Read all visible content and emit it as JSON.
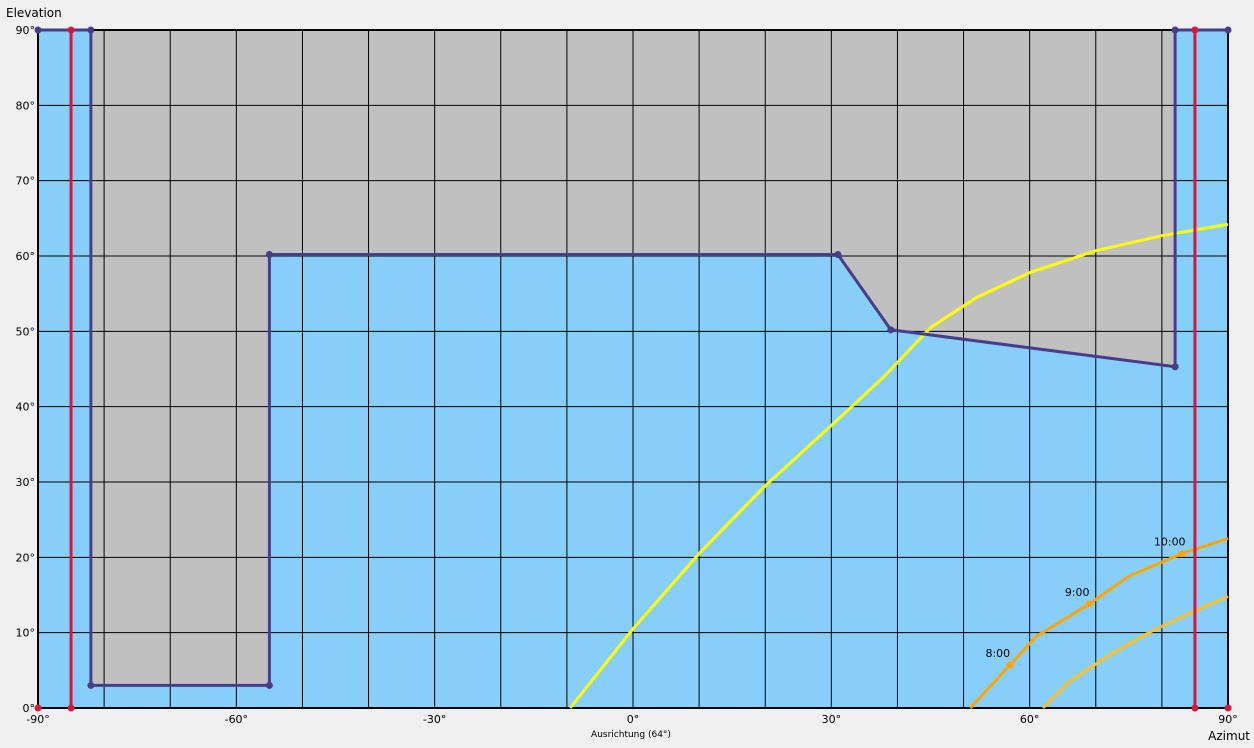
{
  "chart_data": {
    "type": "line",
    "xlabel": "Azimut",
    "ylabel": "Elevation",
    "orientation_label": "Ausrichtung (64°)",
    "xlim": [
      -90,
      90
    ],
    "ylim": [
      0,
      90
    ],
    "grid": true,
    "x_major_ticks": [
      {
        "value": -90,
        "label": "-90°"
      },
      {
        "value": -60,
        "label": "-60°"
      },
      {
        "value": -30,
        "label": "-30°"
      },
      {
        "value": 0,
        "label": "0°"
      },
      {
        "value": 30,
        "label": "30°"
      },
      {
        "value": 60,
        "label": "60°"
      },
      {
        "value": 90,
        "label": "90°"
      }
    ],
    "y_ticks": [
      {
        "value": 0,
        "label": "0°"
      },
      {
        "value": 10,
        "label": "10°"
      },
      {
        "value": 20,
        "label": "20°"
      },
      {
        "value": 30,
        "label": "30°"
      },
      {
        "value": 40,
        "label": "40°"
      },
      {
        "value": 50,
        "label": "50°"
      },
      {
        "value": 60,
        "label": "60°"
      },
      {
        "value": 70,
        "label": "70°"
      },
      {
        "value": 80,
        "label": "80°"
      },
      {
        "value": 90,
        "label": "90°"
      }
    ],
    "x_grid_step": 10,
    "colors": {
      "plot_background": "#c0c0c0",
      "open_sky": "#87cefa",
      "horizon_line": "#483d8b",
      "boundary_line": "#dc143c",
      "grid": "#000000",
      "summer_path": "#ffff00",
      "winter_path": "#ffa500",
      "mid_path": "#ffc020"
    },
    "open_sky_polygon": [
      [
        -90,
        90
      ],
      [
        -82,
        90
      ],
      [
        -82,
        3
      ],
      [
        -55,
        3
      ],
      [
        -55,
        60.2
      ],
      [
        31,
        60.2
      ],
      [
        39,
        50.2
      ],
      [
        82,
        45.3
      ],
      [
        82,
        90
      ],
      [
        90,
        90
      ],
      [
        90,
        0
      ],
      [
        -90,
        0
      ]
    ],
    "horizon_line": [
      [
        -90,
        90
      ],
      [
        -82,
        90
      ],
      [
        -82,
        3
      ],
      [
        -55,
        3
      ],
      [
        -55,
        60.2
      ],
      [
        31,
        60.2
      ],
      [
        39,
        50.2
      ],
      [
        82,
        45.3
      ],
      [
        82,
        90
      ],
      [
        90,
        90
      ]
    ],
    "boundary_lines": [
      {
        "x": -85,
        "y": [
          0,
          90
        ]
      },
      {
        "x": 85,
        "y": [
          0,
          90
        ]
      }
    ],
    "series": [
      {
        "color": "#ffff00",
        "points": [
          [
            -9.5,
            0
          ],
          [
            0,
            10.5
          ],
          [
            10,
            20.5
          ],
          [
            20,
            29.5
          ],
          [
            30,
            37.5
          ],
          [
            38,
            44
          ],
          [
            45,
            50.5
          ],
          [
            52,
            54.5
          ],
          [
            60,
            57.8
          ],
          [
            70,
            60.7
          ],
          [
            80,
            62.7
          ],
          [
            90,
            64.2
          ]
        ]
      },
      {
        "color": "#ffc020",
        "points": [
          [
            62,
            0
          ],
          [
            66,
            3.5
          ],
          [
            72,
            7
          ],
          [
            78,
            10
          ],
          [
            84,
            12.5
          ],
          [
            90,
            14.8
          ]
        ]
      },
      {
        "color": "#ffa500",
        "points": [
          [
            51,
            0
          ],
          [
            57,
            5.7
          ],
          [
            61,
            9.5
          ],
          [
            69,
            13.8
          ],
          [
            75,
            17.5
          ],
          [
            83,
            20.5
          ],
          [
            90,
            22.5
          ]
        ],
        "hour_markers": [
          {
            "label": "8:00",
            "x": 57,
            "y": 5.7
          },
          {
            "label": "9:00",
            "x": 69,
            "y": 13.8
          },
          {
            "label": "10:00",
            "x": 83,
            "y": 20.5
          }
        ]
      }
    ]
  }
}
